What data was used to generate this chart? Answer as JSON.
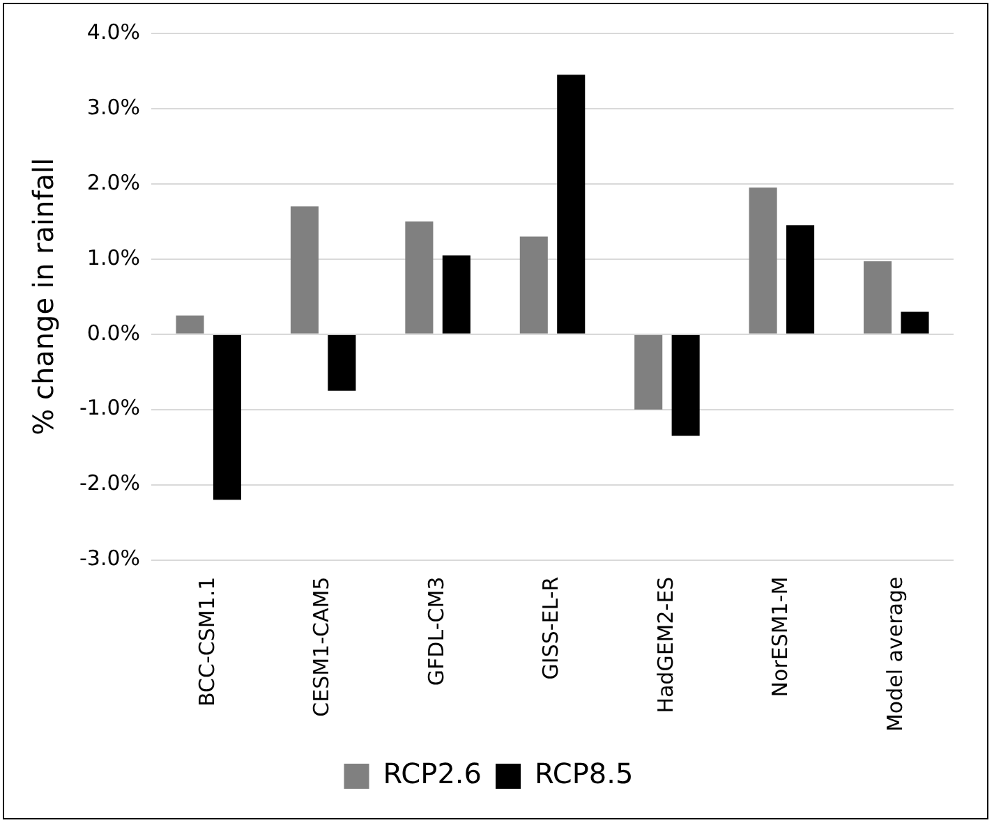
{
  "chart_data": {
    "type": "bar",
    "ylabel": "% change in rainfall",
    "categories": [
      "BCC-CSM1.1",
      "CESM1-CAM5",
      "GFDL-CM3",
      "GISS-EL-R",
      "HadGEM2-ES",
      "NorESM1-M",
      "Model average"
    ],
    "series": [
      {
        "name": "RCP2.6",
        "color": "#808080",
        "values": [
          0.25,
          1.7,
          1.5,
          1.3,
          -1.0,
          1.95,
          0.97
        ]
      },
      {
        "name": "RCP8.5",
        "color": "#000000",
        "values": [
          -2.2,
          -0.75,
          1.05,
          3.45,
          -1.35,
          1.45,
          0.3
        ]
      }
    ],
    "ylim": [
      -3,
      4
    ],
    "yticks": [
      {
        "value": -3,
        "label": "-3.0%"
      },
      {
        "value": -2,
        "label": "-2.0%"
      },
      {
        "value": -1,
        "label": "-1.0%"
      },
      {
        "value": 0,
        "label": "0.0%"
      },
      {
        "value": 1,
        "label": "1.0%"
      },
      {
        "value": 2,
        "label": "2.0%"
      },
      {
        "value": 3,
        "label": "3.0%"
      },
      {
        "value": 4,
        "label": "4.0%"
      }
    ],
    "grid": "y",
    "legend": "bottom"
  }
}
